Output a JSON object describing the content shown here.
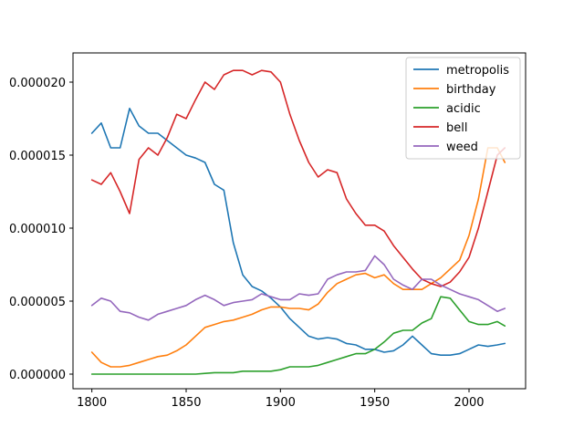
{
  "chart_data": {
    "type": "line",
    "title": "",
    "xlabel": "",
    "ylabel": "",
    "xlim": [
      1790,
      2030
    ],
    "ylim": [
      -1e-06,
      2.2e-05
    ],
    "x_ticks": [
      1800,
      1850,
      1900,
      1950,
      2000
    ],
    "x_tick_labels": [
      "1800",
      "1850",
      "1900",
      "1950",
      "2000"
    ],
    "y_ticks": [
      0,
      5e-06,
      1e-05,
      1.5e-05,
      2e-05
    ],
    "y_tick_labels": [
      "0.000000",
      "0.000005",
      "0.000010",
      "0.000015",
      "0.000020"
    ],
    "grid": false,
    "legend_position": "top-right",
    "x": [
      1800,
      1805,
      1810,
      1815,
      1820,
      1825,
      1830,
      1835,
      1840,
      1845,
      1850,
      1855,
      1860,
      1865,
      1870,
      1875,
      1880,
      1885,
      1890,
      1895,
      1900,
      1905,
      1910,
      1915,
      1920,
      1925,
      1930,
      1935,
      1940,
      1945,
      1950,
      1955,
      1960,
      1965,
      1970,
      1975,
      1980,
      1985,
      1990,
      1995,
      2000,
      2005,
      2010,
      2015,
      2019
    ],
    "series": [
      {
        "name": "metropolis",
        "color": "#1f77b4",
        "values": [
          1.65e-05,
          1.72e-05,
          1.55e-05,
          1.55e-05,
          1.82e-05,
          1.7e-05,
          1.65e-05,
          1.65e-05,
          1.6e-05,
          1.55e-05,
          1.5e-05,
          1.48e-05,
          1.45e-05,
          1.3e-05,
          1.26e-05,
          9e-06,
          6.8e-06,
          6e-06,
          5.7e-06,
          5.2e-06,
          4.6e-06,
          3.8e-06,
          3.2e-06,
          2.6e-06,
          2.4e-06,
          2.5e-06,
          2.4e-06,
          2.1e-06,
          2e-06,
          1.7e-06,
          1.7e-06,
          1.5e-06,
          1.6e-06,
          2e-06,
          2.6e-06,
          2e-06,
          1.4e-06,
          1.3e-06,
          1.3e-06,
          1.4e-06,
          1.7e-06,
          2e-06,
          1.9e-06,
          2e-06,
          2.1e-06
        ]
      },
      {
        "name": "birthday",
        "color": "#ff7f0e",
        "values": [
          1.5e-06,
          8e-07,
          5e-07,
          5e-07,
          6e-07,
          8e-07,
          1e-06,
          1.2e-06,
          1.3e-06,
          1.6e-06,
          2e-06,
          2.6e-06,
          3.2e-06,
          3.4e-06,
          3.6e-06,
          3.7e-06,
          3.9e-06,
          4.1e-06,
          4.4e-06,
          4.6e-06,
          4.6e-06,
          4.5e-06,
          4.5e-06,
          4.4e-06,
          4.8e-06,
          5.6e-06,
          6.2e-06,
          6.5e-06,
          6.8e-06,
          6.9e-06,
          6.6e-06,
          6.8e-06,
          6.2e-06,
          5.8e-06,
          5.8e-06,
          5.8e-06,
          6.2e-06,
          6.6e-06,
          7.2e-06,
          7.8e-06,
          9.5e-06,
          1.2e-05,
          1.55e-05,
          1.55e-05,
          1.45e-05
        ]
      },
      {
        "name": "acidic",
        "color": "#2ca02c",
        "values": [
          0,
          0,
          0,
          0,
          0,
          0,
          0,
          0,
          0,
          0,
          0,
          0,
          5e-08,
          1e-07,
          1e-07,
          1e-07,
          2e-07,
          2e-07,
          2e-07,
          2e-07,
          3e-07,
          5e-07,
          5e-07,
          5e-07,
          6e-07,
          8e-07,
          1e-06,
          1.2e-06,
          1.4e-06,
          1.4e-06,
          1.7e-06,
          2.2e-06,
          2.8e-06,
          3e-06,
          3e-06,
          3.5e-06,
          3.8e-06,
          5.3e-06,
          5.2e-06,
          4.4e-06,
          3.6e-06,
          3.4e-06,
          3.4e-06,
          3.6e-06,
          3.3e-06
        ]
      },
      {
        "name": "bell",
        "color": "#d62728",
        "values": [
          1.33e-05,
          1.3e-05,
          1.38e-05,
          1.25e-05,
          1.1e-05,
          1.47e-05,
          1.55e-05,
          1.5e-05,
          1.62e-05,
          1.78e-05,
          1.75e-05,
          1.88e-05,
          2e-05,
          1.95e-05,
          2.05e-05,
          2.08e-05,
          2.08e-05,
          2.05e-05,
          2.08e-05,
          2.07e-05,
          2e-05,
          1.78e-05,
          1.6e-05,
          1.45e-05,
          1.35e-05,
          1.4e-05,
          1.38e-05,
          1.2e-05,
          1.1e-05,
          1.02e-05,
          1.02e-05,
          9.8e-06,
          8.8e-06,
          8e-06,
          7.2e-06,
          6.5e-06,
          6.2e-06,
          6e-06,
          6.3e-06,
          7e-06,
          8e-06,
          1e-05,
          1.25e-05,
          1.5e-05,
          1.55e-05
        ]
      },
      {
        "name": "weed",
        "color": "#9467bd",
        "values": [
          4.7e-06,
          5.2e-06,
          5e-06,
          4.3e-06,
          4.2e-06,
          3.9e-06,
          3.7e-06,
          4.1e-06,
          4.3e-06,
          4.5e-06,
          4.7e-06,
          5.1e-06,
          5.4e-06,
          5.1e-06,
          4.7e-06,
          4.9e-06,
          5e-06,
          5.1e-06,
          5.5e-06,
          5.3e-06,
          5.1e-06,
          5.1e-06,
          5.5e-06,
          5.4e-06,
          5.5e-06,
          6.5e-06,
          6.8e-06,
          7e-06,
          7e-06,
          7.1e-06,
          8.1e-06,
          7.5e-06,
          6.5e-06,
          6.1e-06,
          5.8e-06,
          6.5e-06,
          6.5e-06,
          6.1e-06,
          5.8e-06,
          5.5e-06,
          5.3e-06,
          5.1e-06,
          4.7e-06,
          4.3e-06,
          4.5e-06
        ]
      }
    ]
  }
}
